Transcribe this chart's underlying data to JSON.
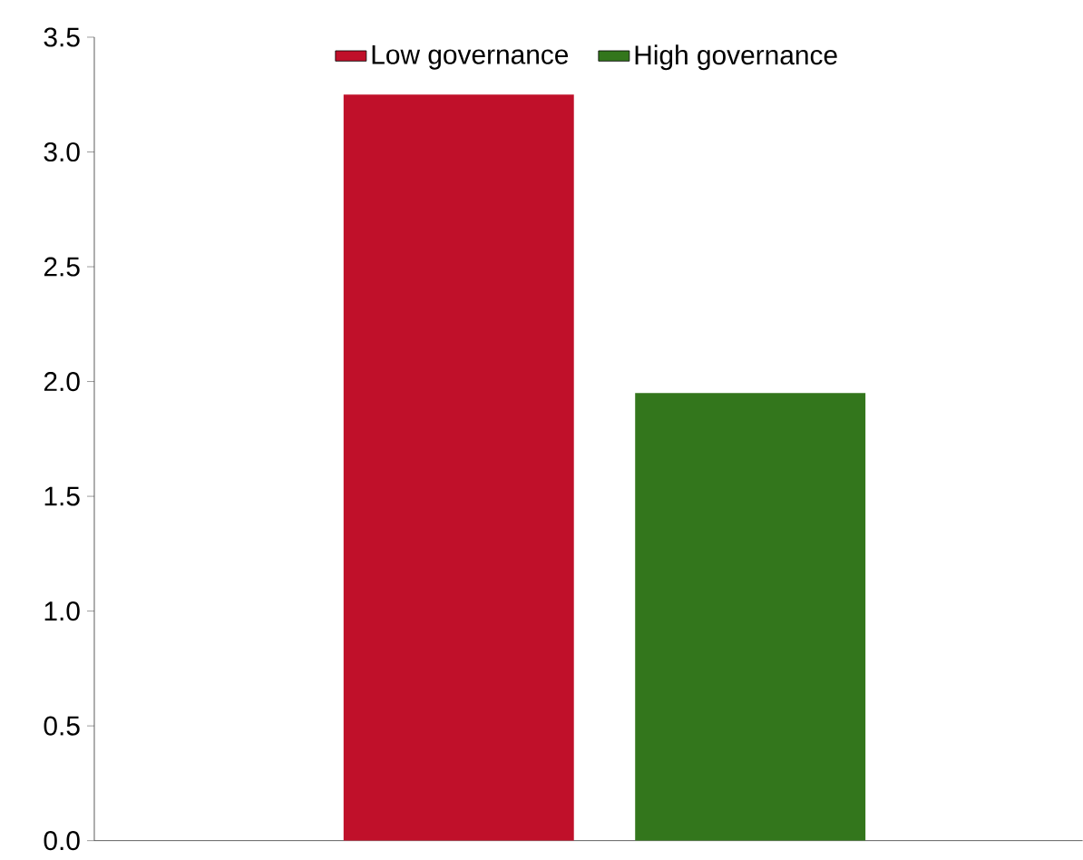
{
  "chart_data": {
    "type": "bar",
    "categories": [
      null,
      null
    ],
    "series": [
      {
        "name": "Low governance",
        "color": "#c0102a",
        "values": [
          3.25,
          null
        ]
      },
      {
        "name": "High governance",
        "color": "#33761c",
        "values": [
          null,
          1.95
        ]
      }
    ],
    "ylim": [
      0,
      3.5
    ],
    "yticks": [
      {
        "value": 0,
        "label": "0.0"
      },
      0.5,
      {
        "value": 1,
        "label": "1.0"
      },
      1.5,
      {
        "value": 2,
        "label": "2.0"
      },
      2.5,
      {
        "value": 3,
        "label": "3.0"
      },
      3.5
    ],
    "legend": "top"
  }
}
